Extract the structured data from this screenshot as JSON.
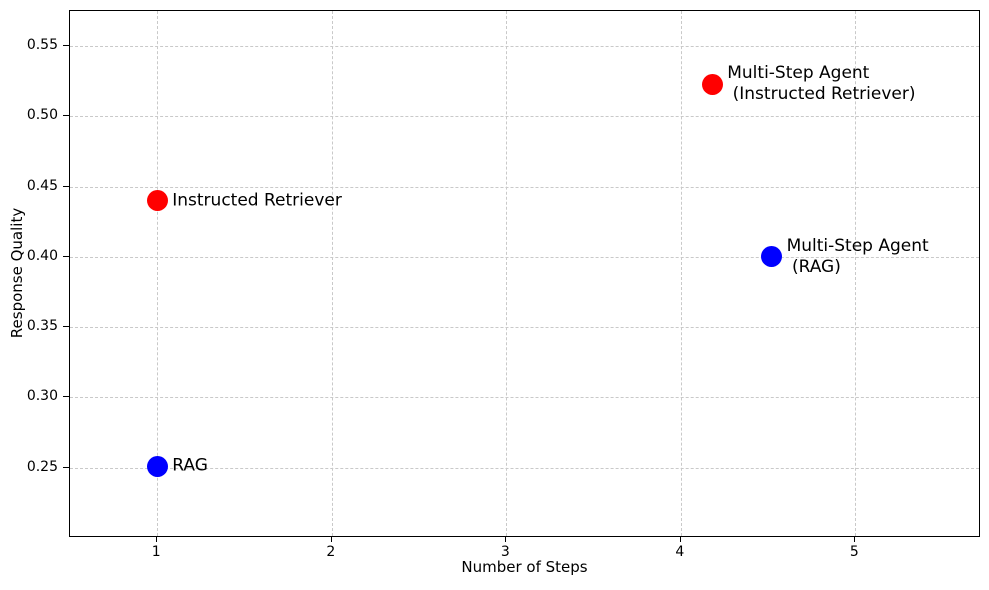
{
  "chart_data": {
    "type": "scatter",
    "title": "",
    "xlabel": "Number of Steps",
    "ylabel": "Response Quality",
    "xlim": [
      0.5,
      5.72
    ],
    "ylim": [
      0.2,
      0.575
    ],
    "grid": true,
    "legend_position": "none",
    "xticks": {
      "values": [
        1,
        2,
        3,
        4,
        5
      ],
      "labels": [
        "1",
        "2",
        "3",
        "4",
        "5"
      ]
    },
    "yticks": {
      "values": [
        0.25,
        0.3,
        0.35,
        0.4,
        0.45,
        0.5,
        0.55
      ],
      "labels": [
        "0.25",
        "0.30",
        "0.35",
        "0.40",
        "0.45",
        "0.50",
        "0.55"
      ]
    },
    "points": [
      {
        "name": "rag",
        "label_lines": [
          "RAG"
        ],
        "x": 1,
        "y": 0.251,
        "color": "#0000ff"
      },
      {
        "name": "instructed-retriever",
        "label_lines": [
          "Instructed Retriever"
        ],
        "x": 1,
        "y": 0.44,
        "color": "#ff0000"
      },
      {
        "name": "multi-step-agent-rag",
        "label_lines": [
          "Multi-Step Agent",
          " (RAG)"
        ],
        "x": 4.52,
        "y": 0.4,
        "color": "#0000ff"
      },
      {
        "name": "multi-step-agent-instructed-retriever",
        "label_lines": [
          "Multi-Step Agent",
          " (Instructed Retriever)"
        ],
        "x": 4.18,
        "y": 0.523,
        "color": "#ff0000"
      }
    ],
    "colors": {
      "rag_series": "#0000ff",
      "instructed_retriever_series": "#ff0000",
      "grid": "#c9c9c9",
      "axis": "#000000",
      "text": "#000000",
      "background": "#ffffff"
    },
    "marker_diameter_px": 21
  }
}
